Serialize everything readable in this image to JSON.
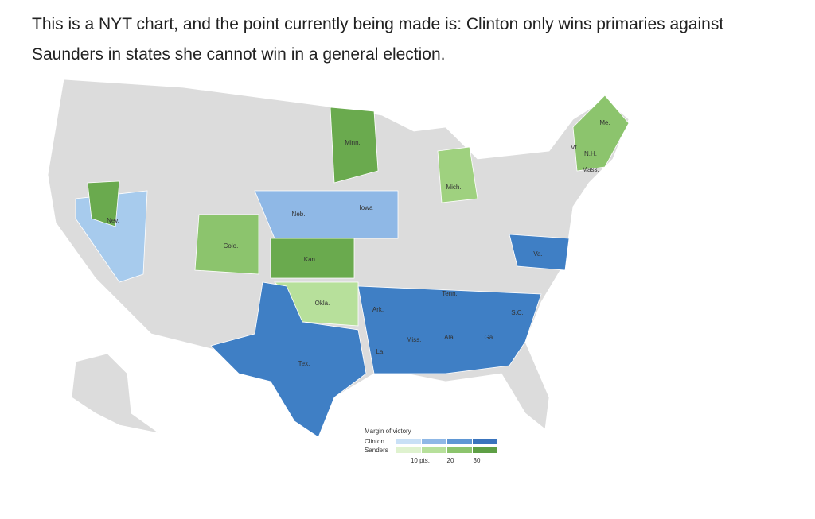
{
  "post": {
    "text": "This is a NYT chart, and the point currently being made is: Clinton only wins primaries against Saunders in states she cannot win in a general election."
  },
  "map": {
    "state_labels": [
      "Minn.",
      "Me.",
      "Vt.",
      "N.H.",
      "Mass.",
      "Mich.",
      "Iowa",
      "Neb.",
      "Nev.",
      "Colo.",
      "Kan.",
      "Va.",
      "Tenn.",
      "Okla.",
      "Ark.",
      "S.C.",
      "Miss.",
      "Ala.",
      "Ga.",
      "La.",
      "Tex."
    ]
  },
  "legend": {
    "title": "Margin of victory",
    "rows": [
      "Clinton",
      "Sanders"
    ],
    "ticks": [
      {
        "value": 10,
        "label": "10 pts."
      },
      20,
      30
    ]
  }
}
